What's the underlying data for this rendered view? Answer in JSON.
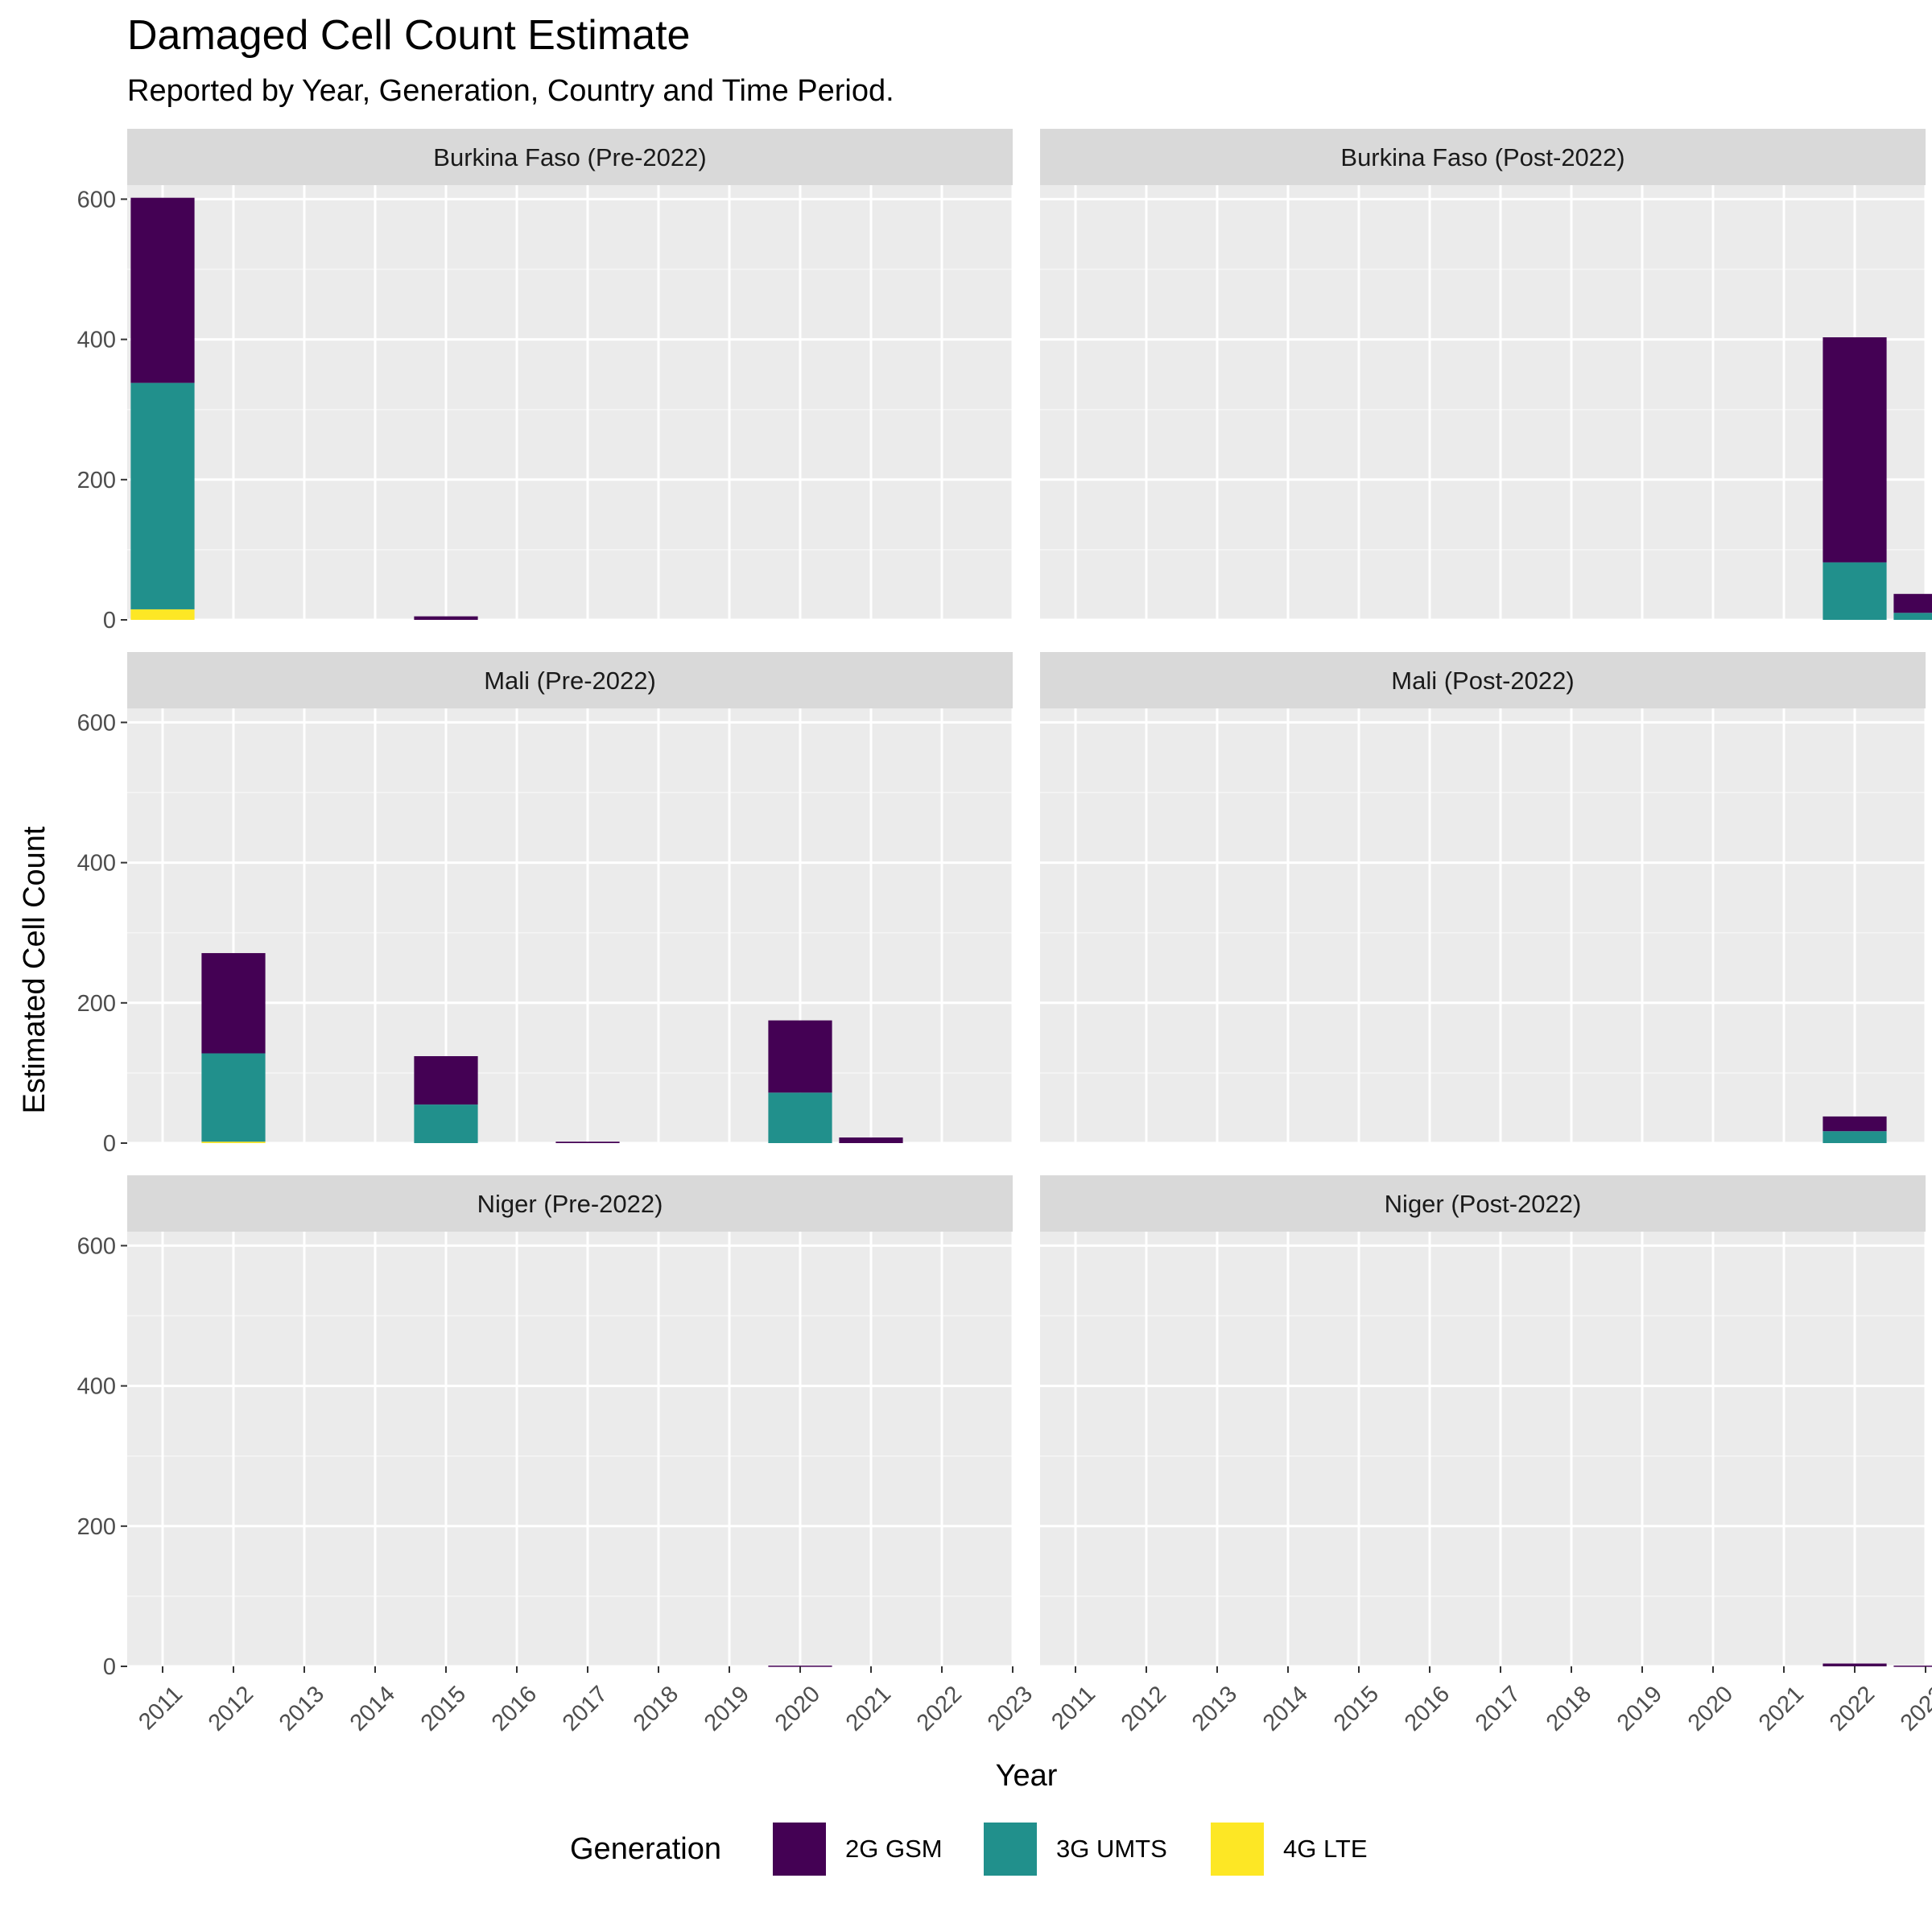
{
  "title": "Damaged Cell Count Estimate",
  "subtitle": "Reported by Year, Generation, Country and Time Period.",
  "colors": {
    "2G GSM": "#440154",
    "3G UMTS": "#21908C",
    "4G LTE": "#FDE725"
  },
  "chart_data": {
    "type": "bar",
    "stacked": true,
    "facet": true,
    "xlabel": "Year",
    "ylabel": "Estimated Cell Count",
    "ylim": [
      0,
      620
    ],
    "yticks": [
      0,
      200,
      400,
      600
    ],
    "categories": [
      "2011",
      "2012",
      "2013",
      "2014",
      "2015",
      "2016",
      "2017",
      "2018",
      "2019",
      "2020",
      "2021",
      "2022",
      "2023"
    ],
    "legend": {
      "title": "Generation",
      "position": "bottom",
      "entries": [
        "2G GSM",
        "3G UMTS",
        "4G LTE"
      ]
    },
    "grid": true,
    "panels": [
      {
        "label": "Burkina Faso (Pre-2022)",
        "series": [
          {
            "name": "4G LTE",
            "values": [
              15,
              0,
              0,
              0,
              0,
              0,
              0,
              0,
              0,
              0,
              0,
              0,
              0
            ]
          },
          {
            "name": "3G UMTS",
            "values": [
              323,
              0,
              0,
              0,
              0,
              0,
              0,
              0,
              0,
              0,
              0,
              0,
              0
            ]
          },
          {
            "name": "2G GSM",
            "values": [
              264,
              0,
              0,
              0,
              5,
              0,
              0,
              0,
              0,
              0,
              0,
              0,
              0
            ]
          }
        ]
      },
      {
        "label": "Burkina Faso (Post-2022)",
        "series": [
          {
            "name": "4G LTE",
            "values": [
              0,
              0,
              0,
              0,
              0,
              0,
              0,
              0,
              0,
              0,
              0,
              0,
              0
            ]
          },
          {
            "name": "3G UMTS",
            "values": [
              0,
              0,
              0,
              0,
              0,
              0,
              0,
              0,
              0,
              0,
              0,
              82,
              10
            ]
          },
          {
            "name": "2G GSM",
            "values": [
              0,
              0,
              0,
              0,
              0,
              0,
              0,
              0,
              0,
              0,
              0,
              321,
              27
            ]
          }
        ]
      },
      {
        "label": "Mali (Pre-2022)",
        "series": [
          {
            "name": "4G LTE",
            "values": [
              0,
              2,
              0,
              0,
              0,
              0,
              0,
              0,
              0,
              0,
              0,
              0,
              0
            ]
          },
          {
            "name": "3G UMTS",
            "values": [
              0,
              126,
              0,
              0,
              55,
              0,
              0,
              0,
              0,
              72,
              0,
              0,
              0
            ]
          },
          {
            "name": "2G GSM",
            "values": [
              0,
              143,
              0,
              0,
              69,
              0,
              2,
              0,
              0,
              103,
              8,
              0,
              0
            ]
          }
        ]
      },
      {
        "label": "Mali (Post-2022)",
        "series": [
          {
            "name": "4G LTE",
            "values": [
              0,
              0,
              0,
              0,
              0,
              0,
              0,
              0,
              0,
              0,
              0,
              0,
              0
            ]
          },
          {
            "name": "3G UMTS",
            "values": [
              0,
              0,
              0,
              0,
              0,
              0,
              0,
              0,
              0,
              0,
              0,
              17,
              0
            ]
          },
          {
            "name": "2G GSM",
            "values": [
              0,
              0,
              0,
              0,
              0,
              0,
              0,
              0,
              0,
              0,
              0,
              21,
              0
            ]
          }
        ]
      },
      {
        "label": "Niger (Pre-2022)",
        "series": [
          {
            "name": "4G LTE",
            "values": [
              0,
              0,
              0,
              0,
              0,
              0,
              0,
              0,
              0,
              0,
              0,
              0,
              0
            ]
          },
          {
            "name": "3G UMTS",
            "values": [
              0,
              0,
              0,
              0,
              0,
              0,
              0,
              0,
              0,
              0,
              0,
              0,
              0
            ]
          },
          {
            "name": "2G GSM",
            "values": [
              0,
              0,
              0,
              0,
              0,
              0,
              0,
              0,
              0,
              1,
              0,
              0,
              0
            ]
          }
        ]
      },
      {
        "label": "Niger (Post-2022)",
        "series": [
          {
            "name": "4G LTE",
            "values": [
              0,
              0,
              0,
              0,
              0,
              0,
              0,
              0,
              0,
              0,
              0,
              0,
              0
            ]
          },
          {
            "name": "3G UMTS",
            "values": [
              0,
              0,
              0,
              0,
              0,
              0,
              0,
              0,
              0,
              0,
              0,
              0,
              0
            ]
          },
          {
            "name": "2G GSM",
            "values": [
              0,
              0,
              0,
              0,
              0,
              0,
              0,
              0,
              0,
              0,
              0,
              4,
              1
            ]
          }
        ]
      }
    ]
  }
}
